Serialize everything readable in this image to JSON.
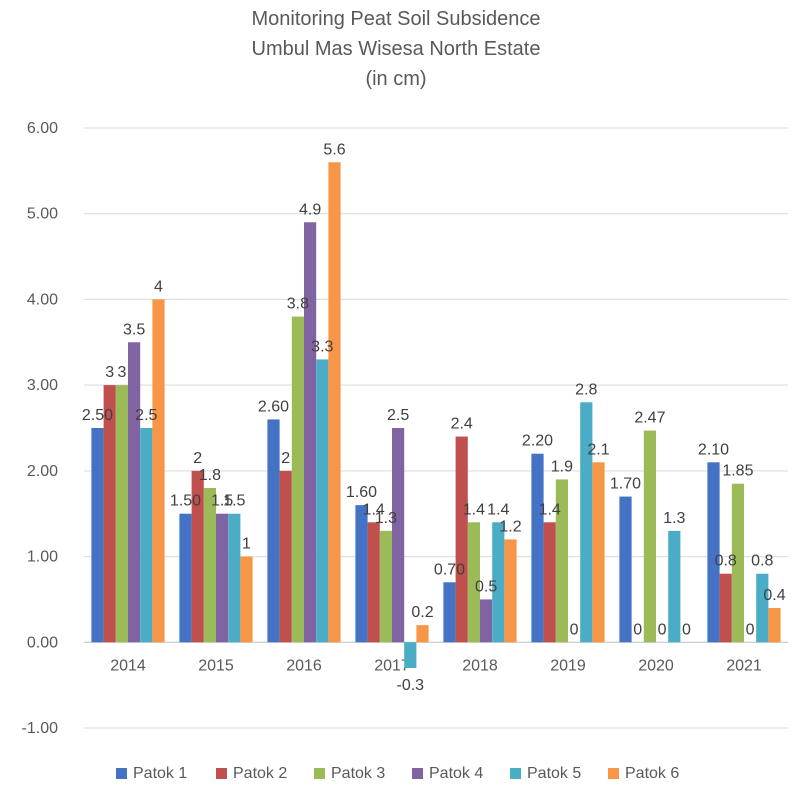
{
  "chart_data": {
    "type": "bar",
    "title_lines": [
      "Monitoring Peat Soil Subsidence",
      "Umbul Mas Wisesa North Estate",
      "(in cm)"
    ],
    "categories": [
      "2014",
      "2015",
      "2016",
      "2017",
      "2018",
      "2019",
      "2020",
      "2021"
    ],
    "ylim": [
      -1,
      6
    ],
    "y_ticks": [
      "-1.00",
      "0.00",
      "1.00",
      "2.00",
      "3.00",
      "4.00",
      "5.00",
      "6.00"
    ],
    "grid": true,
    "legend_position": "bottom",
    "series": [
      {
        "name": "Patok 1",
        "color": "#4472C4",
        "values": [
          2.5,
          1.5,
          2.6,
          1.6,
          0.7,
          2.2,
          1.7,
          2.1
        ],
        "labels": [
          "2.50",
          "1.50",
          "2.60",
          "1.60",
          "0.70",
          "2.20",
          "1.70",
          "2.10"
        ]
      },
      {
        "name": "Patok 2",
        "color": "#C0504D",
        "values": [
          3,
          2,
          2,
          1.4,
          2.4,
          1.4,
          0,
          0.8
        ],
        "labels": [
          "3",
          "2",
          "2",
          "1.4",
          "2.4",
          "1.4",
          "0",
          "0.8"
        ]
      },
      {
        "name": "Patok 3",
        "color": "#9BBB59",
        "values": [
          3,
          1.8,
          3.8,
          1.3,
          1.4,
          1.9,
          2.47,
          1.85
        ],
        "labels": [
          "3",
          "1.8",
          "3.8",
          "1.3",
          "1.4",
          "1.9",
          "2.47",
          "1.85"
        ]
      },
      {
        "name": "Patok 4",
        "color": "#8064A2",
        "values": [
          3.5,
          1.5,
          4.9,
          2.5,
          0.5,
          0,
          0,
          0
        ],
        "labels": [
          "3.5",
          "1.5",
          "4.9",
          "2.5",
          "0.5",
          "0",
          "0",
          "0"
        ]
      },
      {
        "name": "Patok 5",
        "color": "#4BACC6",
        "values": [
          2.5,
          1.5,
          3.3,
          -0.3,
          1.4,
          2.8,
          1.3,
          0.8
        ],
        "labels": [
          "2.5",
          "1.5",
          "3.3",
          "-0.3",
          "1.4",
          "2.8",
          "1.3",
          "0.8"
        ]
      },
      {
        "name": "Patok 6",
        "color": "#F79646",
        "values": [
          4,
          1,
          5.6,
          0.2,
          1.2,
          2.1,
          0,
          0.4
        ],
        "labels": [
          "4",
          "1",
          "5.6",
          "0.2",
          "1.2",
          "2.1",
          "0",
          "0.4"
        ]
      }
    ]
  }
}
